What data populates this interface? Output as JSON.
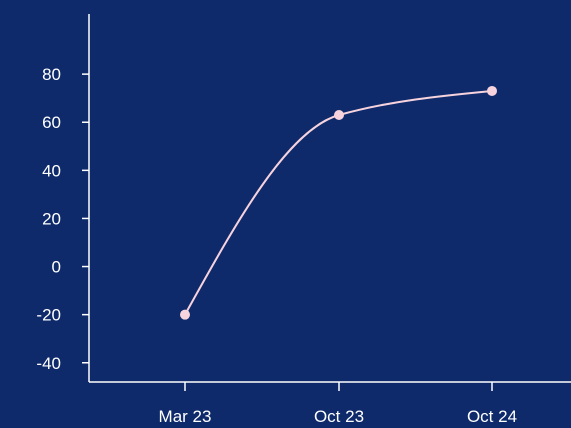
{
  "colors": {
    "background": "#0e2a6b",
    "axis": "#ffffff",
    "line": "#f7d3de",
    "marker": "#f7d3de",
    "text": "#ffffff"
  },
  "chart_data": {
    "type": "line",
    "title": "",
    "xlabel": "",
    "ylabel": "",
    "categories": [
      "Mar 23",
      "Oct 23",
      "Oct 24"
    ],
    "series": [
      {
        "values": [
          -20,
          63,
          73
        ]
      }
    ],
    "y_ticks": [
      -40,
      -20,
      0,
      20,
      40,
      60,
      80
    ],
    "ylim": [
      -48,
      105
    ],
    "grid": false,
    "legend": "none",
    "smooth": true
  }
}
